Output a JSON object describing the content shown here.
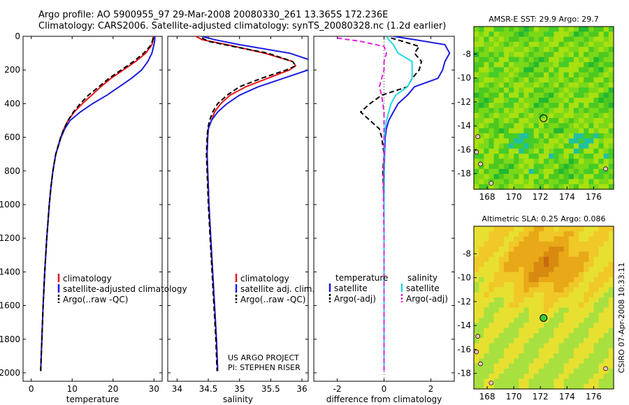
{
  "header": {
    "line1": "Argo profile: AO 5900955_97 29-Mar-2008 20080330_261 13.365S 172.236E",
    "line2": "Climatology: CARS2006. Satellite-adjusted climatology: synTS_20080328.nc (1.2d earlier)"
  },
  "side_stamp": "CSIRO 07-Apr-2008 10:33:11",
  "colors": {
    "climatology": "#e8141a",
    "satellite": "#1c1ce0",
    "argo": "#000000",
    "sat_salt": "#22d8e6",
    "argo_salt": "#e020e0"
  },
  "chart_data": [
    {
      "type": "line",
      "panel": "temperature",
      "xlabel": "temperature",
      "xlim": [
        -2,
        32
      ],
      "xticks": [
        0,
        10,
        20,
        30
      ],
      "ylim": [
        2050,
        0
      ],
      "yticks": [
        0,
        200,
        400,
        600,
        800,
        1000,
        1200,
        1400,
        1600,
        1800,
        2000
      ],
      "legend": [
        "climatology",
        "satellite-adjusted climatology",
        "Argo(..raw -QC)"
      ],
      "series": [
        {
          "name": "climatology",
          "color": "#e8141a",
          "dash": false,
          "depth": [
            0,
            20,
            50,
            100,
            150,
            200,
            250,
            300,
            350,
            400,
            450,
            500,
            550,
            600,
            700,
            800,
            900,
            1000,
            1200,
            1400,
            1600,
            1800,
            1990
          ],
          "values": [
            29.8,
            29.8,
            29.5,
            28,
            25.5,
            22.5,
            19.5,
            17,
            14.8,
            12.5,
            10.5,
            9,
            8,
            7.2,
            6,
            5.3,
            4.8,
            4.4,
            3.8,
            3.3,
            2.9,
            2.6,
            2.3
          ]
        },
        {
          "name": "satellite-adjusted climatology",
          "color": "#1c1ce0",
          "dash": false,
          "depth": [
            0,
            20,
            50,
            100,
            150,
            200,
            250,
            300,
            350,
            400,
            450,
            500,
            550,
            600,
            700,
            800,
            900,
            1000,
            1200,
            1400,
            1600,
            1800,
            1990
          ],
          "values": [
            30.2,
            30.2,
            30,
            29.5,
            28.5,
            27,
            24.5,
            21.5,
            18.5,
            15,
            12,
            9.5,
            8.2,
            7.3,
            6,
            5.3,
            4.8,
            4.4,
            3.8,
            3.3,
            2.9,
            2.6,
            2.3
          ]
        },
        {
          "name": "Argo(..raw -QC)",
          "color": "#000000",
          "dash": true,
          "depth": [
            10,
            30,
            60,
            100,
            150,
            200,
            250,
            300,
            350,
            400,
            450,
            500,
            550,
            600,
            700,
            800,
            900,
            1000,
            1200,
            1400,
            1600,
            1800,
            1990
          ],
          "values": [
            29.8,
            29.6,
            29,
            27.5,
            25,
            22,
            19,
            16.5,
            14,
            12,
            10.3,
            9,
            8,
            7.2,
            6,
            5.3,
            4.8,
            4.4,
            3.8,
            3.3,
            2.9,
            2.6,
            2.3
          ]
        }
      ]
    },
    {
      "type": "line",
      "panel": "salinity",
      "xlabel": "salinity",
      "xlim": [
        33.85,
        36.1
      ],
      "xticks": [
        34,
        34.5,
        35,
        35.5,
        36
      ],
      "xticklabels": [
        "34",
        "34.5",
        "35",
        "35.5",
        "36"
      ],
      "ylim": [
        2050,
        0
      ],
      "legend": [
        "climatology",
        "satellite adj. clim.",
        "Argo(..raw -QC)"
      ],
      "annotation": [
        "US ARGO PROJECT",
        "PI: STEPHEN RISER"
      ],
      "series": [
        {
          "name": "climatology",
          "color": "#e8141a",
          "dash": false,
          "depth": [
            0,
            20,
            50,
            100,
            150,
            175,
            200,
            250,
            300,
            350,
            400,
            450,
            500,
            550,
            600,
            700,
            800,
            1000,
            1200,
            1400,
            1600,
            1800,
            1990
          ],
          "values": [
            34.3,
            34.4,
            34.8,
            35.4,
            35.85,
            35.9,
            35.8,
            35.45,
            35.1,
            34.85,
            34.7,
            34.6,
            34.55,
            34.5,
            34.49,
            34.48,
            34.49,
            34.51,
            34.54,
            34.57,
            34.6,
            34.63,
            34.65
          ]
        },
        {
          "name": "satellite adj. clim.",
          "color": "#1c1ce0",
          "dash": false,
          "depth": [
            0,
            20,
            50,
            100,
            150,
            175,
            200,
            250,
            300,
            350,
            400,
            450,
            500,
            550,
            600,
            700,
            800,
            1000,
            1200,
            1400,
            1600,
            1800,
            1990
          ],
          "values": [
            34.4,
            34.6,
            35.0,
            35.8,
            36.2,
            36.2,
            36.1,
            35.7,
            35.3,
            35.0,
            34.8,
            34.65,
            34.55,
            34.5,
            34.49,
            34.48,
            34.49,
            34.51,
            34.54,
            34.57,
            34.6,
            34.63,
            34.65
          ]
        },
        {
          "name": "Argo(..raw -QC)",
          "color": "#000000",
          "dash": true,
          "depth": [
            10,
            30,
            60,
            100,
            150,
            175,
            200,
            250,
            300,
            350,
            400,
            450,
            500,
            550,
            600,
            700,
            800,
            1000,
            1200,
            1400,
            1600,
            1800,
            1990
          ],
          "values": [
            34.4,
            34.5,
            34.9,
            35.45,
            35.85,
            35.9,
            35.75,
            35.35,
            35.0,
            34.8,
            34.65,
            34.57,
            34.52,
            34.49,
            34.48,
            34.47,
            34.48,
            34.5,
            34.53,
            34.56,
            34.59,
            34.62,
            34.64
          ]
        }
      ]
    },
    {
      "type": "line",
      "panel": "difference",
      "xlabel": "difference from climatology",
      "xlim": [
        -3,
        3
      ],
      "xticks": [
        -2,
        0,
        2
      ],
      "ylim": [
        2050,
        0
      ],
      "legend_temperature_title": "temperature",
      "legend_salinity_title": "salinity",
      "legend": [
        "satellite",
        "Argo(-adj)",
        "satellite",
        "Argo(-adj)"
      ],
      "series": [
        {
          "name": "temperature satellite",
          "color": "#1c1ce0",
          "dash": false,
          "depth": [
            0,
            20,
            50,
            100,
            150,
            200,
            250,
            300,
            350,
            400,
            450,
            500,
            550,
            600,
            700,
            800,
            1000,
            1200,
            1400,
            1600,
            1800,
            1990
          ],
          "values": [
            0.4,
            1.3,
            2.6,
            2.8,
            2.6,
            2.5,
            2.3,
            1.3,
            1.0,
            0.6,
            0.4,
            0.2,
            0.1,
            0.05,
            0.02,
            0.01,
            0.0,
            0.0,
            0.0,
            0.0,
            0.0,
            0.0
          ]
        },
        {
          "name": "temperature Argo(-adj)",
          "color": "#000000",
          "dash": true,
          "depth": [
            10,
            30,
            60,
            100,
            150,
            200,
            250,
            300,
            350,
            400,
            450,
            500,
            550,
            600,
            700,
            800,
            1000,
            1200,
            1400,
            1600,
            1800,
            1990
          ],
          "values": [
            0.3,
            0.8,
            1.5,
            1.3,
            1.6,
            1.5,
            1.2,
            1.0,
            -0.1,
            -0.6,
            -1.0,
            -0.6,
            -0.2,
            -0.1,
            0.0,
            -0.05,
            0.0,
            0.0,
            0.0,
            0.0,
            0.0,
            0.0
          ]
        },
        {
          "name": "salinity satellite",
          "color": "#22d8e6",
          "dash": false,
          "depth": [
            0,
            20,
            50,
            100,
            150,
            200,
            250,
            300,
            350,
            400,
            450,
            500,
            550,
            600,
            700,
            800,
            1000,
            1200,
            1400,
            1600,
            1800,
            1990
          ],
          "values": [
            0.1,
            0.2,
            0.4,
            0.6,
            1.2,
            1.2,
            1.2,
            1.0,
            0.5,
            0.3,
            0.2,
            0.1,
            0.05,
            0.02,
            0.0,
            0.0,
            0.0,
            0.0,
            0.0,
            0.0,
            0.0,
            0.0
          ]
        },
        {
          "name": "salinity Argo(-adj)",
          "color": "#e020e0",
          "dash": true,
          "depth": [
            10,
            30,
            60,
            100,
            150,
            200,
            250,
            300,
            350,
            400,
            450,
            500,
            550,
            600,
            700,
            800,
            1000,
            1200,
            1400,
            1600,
            1800,
            1990
          ],
          "values": [
            -2.0,
            -1.0,
            0.0,
            0.1,
            0.0,
            0.0,
            -0.1,
            -0.2,
            -0.1,
            -0.05,
            0.0,
            0.0,
            0.0,
            0.0,
            0.0,
            -0.02,
            -0.02,
            0.0,
            0.0,
            0.0,
            0.0,
            0.0
          ]
        }
      ]
    },
    {
      "type": "heatmap",
      "panel": "sst_map",
      "title": "AMSR-E SST: 29.9 Argo: 29.7",
      "xlim": [
        167,
        177.5
      ],
      "ylim": [
        -19.3,
        -5.7
      ],
      "xticks": [
        168,
        170,
        172,
        174,
        176
      ],
      "yticks": [
        -8,
        -10,
        -12,
        -14,
        -16,
        -18
      ],
      "marker": {
        "lon": 172.236,
        "lat": -13.365
      },
      "colors": [
        "#22b830",
        "#4cc820",
        "#7ad818",
        "#a8e010",
        "#44cc28",
        "#22c0a0"
      ]
    },
    {
      "type": "heatmap",
      "panel": "sla_map",
      "title": "Altimetric SLA: 0.25 Argo: 0.086",
      "xlim": [
        167,
        177.5
      ],
      "ylim": [
        -19.3,
        -5.7
      ],
      "xticks": [
        168,
        170,
        172,
        174,
        176
      ],
      "yticks": [
        -8,
        -10,
        -12,
        -14,
        -16,
        -18
      ],
      "marker": {
        "lon": 172.236,
        "lat": -13.365
      },
      "colors": [
        "#c86a10",
        "#d88a10",
        "#e8a818",
        "#f0c828",
        "#e8e030",
        "#a8e040"
      ]
    }
  ]
}
